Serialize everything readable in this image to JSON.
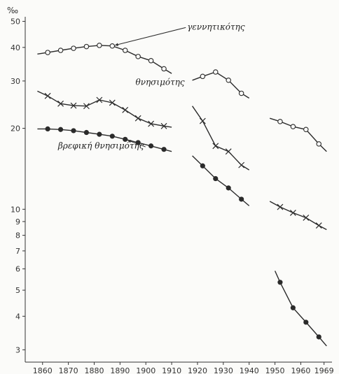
{
  "chart_data": {
    "type": "line",
    "title": "",
    "xlabel": "",
    "ylabel": "‰",
    "y_scale": "log",
    "ylim": [
      2.7,
      52
    ],
    "xlim": [
      1856,
      1971
    ],
    "grid": false,
    "x_ticks": [
      1860,
      1870,
      1880,
      1890,
      1900,
      1910,
      1920,
      1930,
      1940,
      1950,
      1960,
      1969
    ],
    "x_tick_labels": [
      "1860",
      "1870",
      "1880",
      "1890",
      "1900",
      "1910",
      "1920",
      "1930",
      "1940",
      "1950",
      "1960",
      "1969"
    ],
    "y_ticks": [
      3,
      4,
      5,
      6,
      7,
      8,
      9,
      10,
      20,
      30,
      40,
      50
    ],
    "y_tick_labels": [
      "3",
      "4",
      "5",
      "6",
      "7",
      "8",
      "9",
      "10",
      "20",
      "30",
      "40",
      "50"
    ],
    "series": [
      {
        "name": "γεννητικότης",
        "marker": "open-circle",
        "segments": [
          {
            "line": [
              [
                1858,
                37.8
              ],
              [
                1862,
                38.3
              ],
              [
                1867,
                39.0
              ],
              [
                1872,
                39.7
              ],
              [
                1877,
                40.3
              ],
              [
                1882,
                40.7
              ],
              [
                1887,
                40.5
              ],
              [
                1892,
                39.0
              ],
              [
                1897,
                37.0
              ],
              [
                1902,
                35.7
              ],
              [
                1907,
                33.3
              ],
              [
                1910,
                32.0
              ]
            ],
            "points": [
              [
                1862,
                38.3
              ],
              [
                1867,
                39.0
              ],
              [
                1872,
                39.7
              ],
              [
                1877,
                40.3
              ],
              [
                1882,
                40.7
              ],
              [
                1887,
                40.5
              ],
              [
                1892,
                39.0
              ],
              [
                1897,
                37.0
              ],
              [
                1902,
                35.7
              ],
              [
                1907,
                33.3
              ]
            ]
          },
          {
            "line": [
              [
                1918,
                30.2
              ],
              [
                1922,
                31.2
              ],
              [
                1927,
                32.4
              ],
              [
                1932,
                30.2
              ],
              [
                1937,
                27.0
              ],
              [
                1940,
                25.9
              ]
            ],
            "points": [
              [
                1922,
                31.2
              ],
              [
                1927,
                32.4
              ],
              [
                1932,
                30.2
              ],
              [
                1937,
                27.0
              ]
            ]
          },
          {
            "line": [
              [
                1948,
                21.8
              ],
              [
                1952,
                21.2
              ],
              [
                1957,
                20.3
              ],
              [
                1962,
                19.8
              ],
              [
                1967,
                17.5
              ],
              [
                1970,
                16.4
              ]
            ],
            "points": [
              [
                1952,
                21.2
              ],
              [
                1957,
                20.3
              ],
              [
                1962,
                19.8
              ],
              [
                1967,
                17.5
              ]
            ]
          }
        ]
      },
      {
        "name": "θνησιμότης",
        "marker": "x",
        "segments": [
          {
            "line": [
              [
                1858,
                27.5
              ],
              [
                1862,
                26.4
              ],
              [
                1867,
                24.7
              ],
              [
                1872,
                24.3
              ],
              [
                1877,
                24.2
              ],
              [
                1882,
                25.5
              ],
              [
                1887,
                24.9
              ],
              [
                1892,
                23.4
              ],
              [
                1897,
                21.8
              ],
              [
                1902,
                20.8
              ],
              [
                1907,
                20.4
              ],
              [
                1910,
                20.2
              ]
            ],
            "points": [
              [
                1862,
                26.4
              ],
              [
                1867,
                24.7
              ],
              [
                1872,
                24.3
              ],
              [
                1877,
                24.2
              ],
              [
                1882,
                25.5
              ],
              [
                1887,
                24.9
              ],
              [
                1892,
                23.4
              ],
              [
                1897,
                21.8
              ],
              [
                1902,
                20.8
              ],
              [
                1907,
                20.4
              ]
            ]
          },
          {
            "line": [
              [
                1918,
                24.2
              ],
              [
                1922,
                21.3
              ],
              [
                1927,
                17.2
              ],
              [
                1932,
                16.4
              ],
              [
                1937,
                14.6
              ],
              [
                1940,
                14.0
              ]
            ],
            "points": [
              [
                1922,
                21.3
              ],
              [
                1927,
                17.2
              ],
              [
                1932,
                16.4
              ],
              [
                1937,
                14.6
              ]
            ]
          },
          {
            "line": [
              [
                1948,
                10.7
              ],
              [
                1952,
                10.2
              ],
              [
                1957,
                9.7
              ],
              [
                1962,
                9.3
              ],
              [
                1967,
                8.7
              ],
              [
                1970,
                8.4
              ]
            ],
            "points": [
              [
                1952,
                10.2
              ],
              [
                1957,
                9.7
              ],
              [
                1962,
                9.3
              ],
              [
                1967,
                8.7
              ]
            ]
          }
        ]
      },
      {
        "name": "βρεφική θνησιμότης",
        "marker": "filled-circle",
        "segments": [
          {
            "line": [
              [
                1858,
                19.9
              ],
              [
                1862,
                19.9
              ],
              [
                1867,
                19.8
              ],
              [
                1872,
                19.6
              ],
              [
                1877,
                19.3
              ],
              [
                1882,
                19.0
              ],
              [
                1887,
                18.7
              ],
              [
                1892,
                18.2
              ],
              [
                1897,
                17.7
              ],
              [
                1902,
                17.2
              ],
              [
                1907,
                16.7
              ],
              [
                1910,
                16.4
              ]
            ],
            "points": [
              [
                1862,
                19.9
              ],
              [
                1867,
                19.8
              ],
              [
                1872,
                19.6
              ],
              [
                1877,
                19.3
              ],
              [
                1882,
                19.0
              ],
              [
                1887,
                18.7
              ],
              [
                1892,
                18.2
              ],
              [
                1897,
                17.7
              ],
              [
                1902,
                17.2
              ],
              [
                1907,
                16.7
              ]
            ]
          },
          {
            "line": [
              [
                1918,
                15.8
              ],
              [
                1922,
                14.5
              ],
              [
                1927,
                13.0
              ],
              [
                1932,
                12.0
              ],
              [
                1937,
                10.9
              ],
              [
                1940,
                10.3
              ]
            ],
            "points": [
              [
                1922,
                14.5
              ],
              [
                1927,
                13.0
              ],
              [
                1932,
                12.0
              ],
              [
                1937,
                10.9
              ]
            ]
          },
          {
            "line": [
              [
                1950,
                5.9
              ],
              [
                1952,
                5.35
              ],
              [
                1957,
                4.3
              ],
              [
                1962,
                3.8
              ],
              [
                1967,
                3.35
              ],
              [
                1970,
                3.1
              ]
            ],
            "points": [
              [
                1952,
                5.35
              ],
              [
                1957,
                4.3
              ],
              [
                1962,
                3.8
              ],
              [
                1967,
                3.35
              ]
            ]
          }
        ]
      }
    ],
    "annotations": [
      {
        "text": "γεννητικότης",
        "series": 0,
        "target": [
          1887,
          40.5
        ],
        "label_at": [
          1916,
          46.5
        ],
        "arrow": true
      },
      {
        "text": "θνησιμότης",
        "series": 1,
        "target": null,
        "label_at": [
          1896,
          29.0
        ],
        "arrow": false
      },
      {
        "text": "βρεφική θνησιμότης",
        "series": 2,
        "target": [
          1892,
          18.2
        ],
        "label_at": [
          1866,
          16.8
        ],
        "arrow": true
      }
    ]
  }
}
